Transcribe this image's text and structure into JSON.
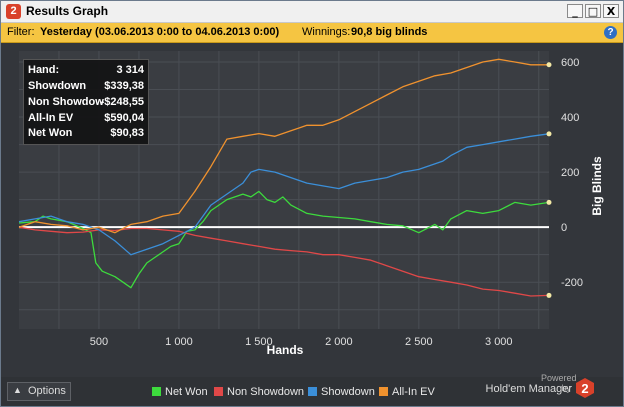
{
  "window": {
    "title": "Results Graph",
    "app_icon": "2",
    "buttons": [
      "_",
      "□",
      "X"
    ]
  },
  "filter": {
    "label": "Filter:",
    "value": "Yesterday (03.06.2013 0:00 to 04.06.2013 0:00)",
    "winnings_label": "Winnings:",
    "winnings_value": "90,8 big blinds",
    "help": "?"
  },
  "stats": {
    "rows": [
      {
        "key": "Hand:",
        "value": "3 314"
      },
      {
        "key": "Showdown",
        "value": "$339,38"
      },
      {
        "key": "Non Showdown",
        "value": "-$248,55"
      },
      {
        "key": "All-In EV",
        "value": "$590,04"
      },
      {
        "key": "Net Won",
        "value": "$90,83"
      }
    ]
  },
  "options": {
    "arrow": "▲",
    "label": "Options"
  },
  "powered": {
    "line1": "Powered",
    "line2": "by",
    "brand": "Hold'em Manager"
  },
  "colors": {
    "net_won": "#3ddb3d",
    "non_showdown": "#e04848",
    "showdown": "#3b8fd9",
    "allin_ev": "#f0922e",
    "zero_line": "#ffffff",
    "filter_bar": "#f5c542"
  },
  "chart_data": {
    "type": "line",
    "xlabel": "Hands",
    "ylabel": "Big Blinds",
    "xlim": [
      0,
      3314
    ],
    "ylim": [
      -370,
      640
    ],
    "x_ticks": [
      {
        "value": 500,
        "label": "500"
      },
      {
        "value": 1000,
        "label": "1 000"
      },
      {
        "value": 1500,
        "label": "1 500"
      },
      {
        "value": 2000,
        "label": "2 000"
      },
      {
        "value": 2500,
        "label": "2 500"
      },
      {
        "value": 3000,
        "label": "3 000"
      }
    ],
    "y_ticks": [
      {
        "value": -200,
        "label": "-200"
      },
      {
        "value": 0,
        "label": "0"
      },
      {
        "value": 200,
        "label": "200"
      },
      {
        "value": 400,
        "label": "400"
      },
      {
        "value": 600,
        "label": "600"
      }
    ],
    "grid": true,
    "legend_position": "bottom",
    "series": [
      {
        "name": "Net Won",
        "color": "#3ddb3d",
        "x": [
          0,
          100,
          150,
          200,
          300,
          400,
          450,
          480,
          520,
          600,
          650,
          700,
          750,
          800,
          850,
          900,
          950,
          1000,
          1050,
          1100,
          1150,
          1200,
          1250,
          1300,
          1350,
          1400,
          1450,
          1500,
          1550,
          1600,
          1650,
          1700,
          1800,
          1900,
          2000,
          2100,
          2200,
          2300,
          2400,
          2500,
          2600,
          2650,
          2700,
          2800,
          2900,
          3000,
          3100,
          3200,
          3314
        ],
        "y": [
          15,
          20,
          40,
          30,
          20,
          -5,
          -20,
          -130,
          -160,
          -180,
          -200,
          -220,
          -170,
          -130,
          -110,
          -90,
          -70,
          -60,
          -15,
          -10,
          20,
          60,
          80,
          100,
          110,
          120,
          110,
          130,
          100,
          90,
          110,
          80,
          50,
          40,
          35,
          30,
          20,
          10,
          5,
          -20,
          10,
          -10,
          30,
          60,
          50,
          60,
          90,
          80,
          90
        ]
      },
      {
        "name": "Non Showdown",
        "color": "#e04848",
        "x": [
          0,
          100,
          200,
          300,
          400,
          500,
          600,
          700,
          800,
          900,
          1000,
          1100,
          1200,
          1300,
          1400,
          1500,
          1600,
          1700,
          1800,
          1900,
          2000,
          2100,
          2200,
          2300,
          2400,
          2500,
          2600,
          2700,
          2800,
          2900,
          3000,
          3100,
          3200,
          3314
        ],
        "y": [
          0,
          -10,
          -15,
          -20,
          -18,
          -10,
          -12,
          -5,
          -5,
          -10,
          -15,
          -30,
          -40,
          -50,
          -60,
          -70,
          -80,
          -85,
          -90,
          -100,
          -100,
          -110,
          -120,
          -140,
          -160,
          -180,
          -190,
          -200,
          -210,
          -225,
          -230,
          -240,
          -250,
          -248
        ]
      },
      {
        "name": "Showdown",
        "color": "#3b8fd9",
        "x": [
          0,
          100,
          200,
          300,
          400,
          500,
          600,
          700,
          800,
          900,
          1000,
          1100,
          1200,
          1300,
          1400,
          1450,
          1500,
          1600,
          1700,
          1800,
          1900,
          2000,
          2100,
          2200,
          2300,
          2400,
          2500,
          2600,
          2650,
          2700,
          2800,
          2900,
          3000,
          3100,
          3200,
          3314
        ],
        "y": [
          20,
          30,
          40,
          20,
          10,
          -10,
          -50,
          -100,
          -80,
          -60,
          -30,
          0,
          80,
          120,
          160,
          200,
          210,
          200,
          180,
          160,
          150,
          140,
          160,
          170,
          180,
          200,
          210,
          230,
          240,
          260,
          290,
          300,
          310,
          320,
          330,
          339
        ]
      },
      {
        "name": "All-In EV",
        "color": "#f0922e",
        "x": [
          0,
          100,
          200,
          300,
          400,
          500,
          600,
          700,
          800,
          900,
          1000,
          1100,
          1200,
          1300,
          1400,
          1500,
          1600,
          1700,
          1800,
          1900,
          2000,
          2100,
          2200,
          2300,
          2400,
          2500,
          2600,
          2700,
          2800,
          2900,
          3000,
          3100,
          3200,
          3314
        ],
        "y": [
          0,
          20,
          10,
          5,
          -10,
          0,
          -20,
          10,
          20,
          40,
          50,
          130,
          220,
          320,
          330,
          340,
          330,
          350,
          370,
          370,
          390,
          420,
          450,
          480,
          510,
          530,
          550,
          560,
          580,
          600,
          610,
          600,
          590,
          590
        ]
      }
    ]
  }
}
